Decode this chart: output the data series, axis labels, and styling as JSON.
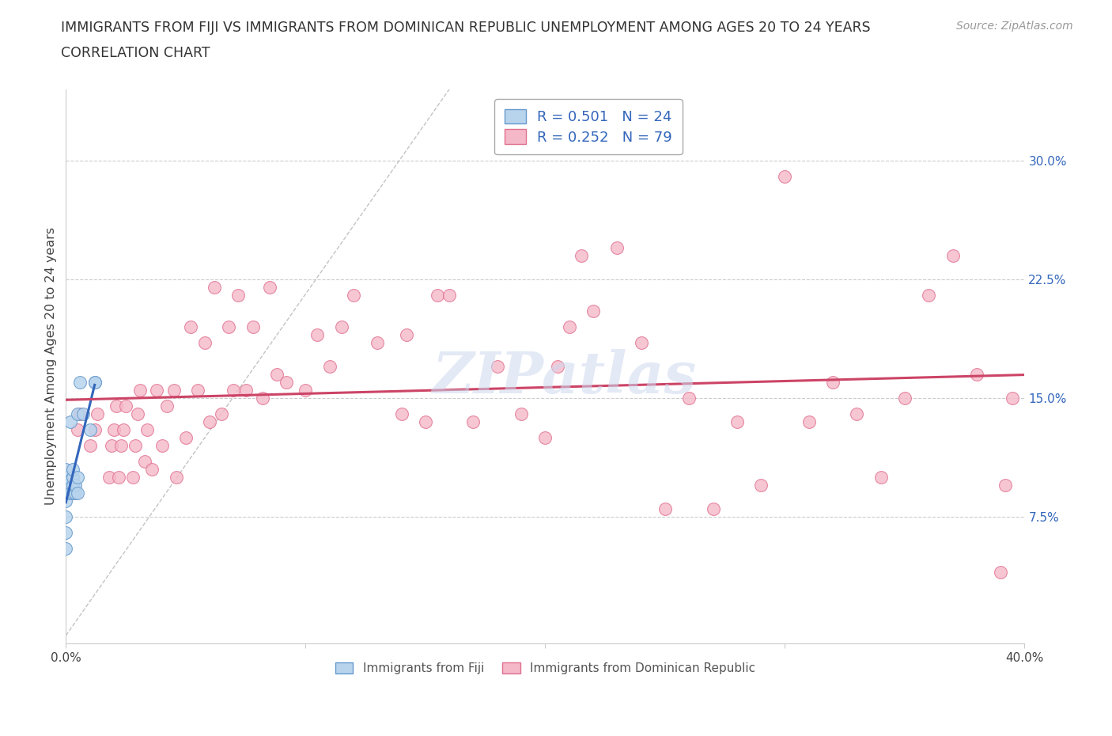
{
  "title_line1": "IMMIGRANTS FROM FIJI VS IMMIGRANTS FROM DOMINICAN REPUBLIC UNEMPLOYMENT AMONG AGES 20 TO 24 YEARS",
  "title_line2": "CORRELATION CHART",
  "source_text": "Source: ZipAtlas.com",
  "ylabel": "Unemployment Among Ages 20 to 24 years",
  "xlim": [
    0.0,
    0.4
  ],
  "ylim": [
    -0.005,
    0.345
  ],
  "right_yticks": [
    0.075,
    0.15,
    0.225,
    0.3
  ],
  "right_yticklabels": [
    "7.5%",
    "15.0%",
    "22.5%",
    "30.0%"
  ],
  "xticks": [
    0.0,
    0.1,
    0.2,
    0.3,
    0.4
  ],
  "xticklabels": [
    "0.0%",
    "",
    "",
    "",
    "40.0%"
  ],
  "fiji_color": "#b8d4ed",
  "fiji_edge_color": "#6699cc",
  "dr_color": "#f5b8c8",
  "dr_edge_color": "#e07090",
  "fiji_trend_color": "#3366bb",
  "dr_trend_color": "#cc4466",
  "legend_fiji_label": "R = 0.501   N = 24",
  "legend_dr_label": "R = 0.252   N = 79",
  "legend_label_fiji": "Immigrants from Fiji",
  "legend_label_dr": "Immigrants from Dominican Republic",
  "watermark": "ZIPatlas",
  "fiji_x": [
    0.0,
    0.0,
    0.0,
    0.0,
    0.0,
    0.0,
    0.0,
    0.0,
    0.002,
    0.002,
    0.003,
    0.003,
    0.003,
    0.003,
    0.004,
    0.004,
    0.005,
    0.005,
    0.005,
    0.006,
    0.007,
    0.01,
    0.012,
    0.012
  ],
  "fiji_y": [
    0.055,
    0.065,
    0.075,
    0.085,
    0.09,
    0.095,
    0.1,
    0.105,
    0.09,
    0.135,
    0.09,
    0.095,
    0.1,
    0.105,
    0.09,
    0.095,
    0.09,
    0.1,
    0.14,
    0.16,
    0.14,
    0.13,
    0.16,
    0.16
  ],
  "dr_x": [
    0.005,
    0.006,
    0.01,
    0.012,
    0.013,
    0.018,
    0.019,
    0.02,
    0.021,
    0.022,
    0.023,
    0.024,
    0.025,
    0.028,
    0.029,
    0.03,
    0.031,
    0.033,
    0.034,
    0.036,
    0.038,
    0.04,
    0.042,
    0.045,
    0.046,
    0.05,
    0.052,
    0.055,
    0.058,
    0.06,
    0.062,
    0.065,
    0.068,
    0.07,
    0.072,
    0.075,
    0.078,
    0.082,
    0.085,
    0.088,
    0.092,
    0.1,
    0.105,
    0.11,
    0.115,
    0.12,
    0.13,
    0.14,
    0.142,
    0.15,
    0.155,
    0.16,
    0.17,
    0.18,
    0.19,
    0.2,
    0.205,
    0.21,
    0.215,
    0.22,
    0.23,
    0.24,
    0.25,
    0.26,
    0.27,
    0.28,
    0.29,
    0.3,
    0.31,
    0.32,
    0.33,
    0.34,
    0.35,
    0.36,
    0.37,
    0.38,
    0.39,
    0.392,
    0.395
  ],
  "dr_y": [
    0.13,
    0.14,
    0.12,
    0.13,
    0.14,
    0.1,
    0.12,
    0.13,
    0.145,
    0.1,
    0.12,
    0.13,
    0.145,
    0.1,
    0.12,
    0.14,
    0.155,
    0.11,
    0.13,
    0.105,
    0.155,
    0.12,
    0.145,
    0.155,
    0.1,
    0.125,
    0.195,
    0.155,
    0.185,
    0.135,
    0.22,
    0.14,
    0.195,
    0.155,
    0.215,
    0.155,
    0.195,
    0.15,
    0.22,
    0.165,
    0.16,
    0.155,
    0.19,
    0.17,
    0.195,
    0.215,
    0.185,
    0.14,
    0.19,
    0.135,
    0.215,
    0.215,
    0.135,
    0.17,
    0.14,
    0.125,
    0.17,
    0.195,
    0.24,
    0.205,
    0.245,
    0.185,
    0.08,
    0.15,
    0.08,
    0.135,
    0.095,
    0.29,
    0.135,
    0.16,
    0.14,
    0.1,
    0.15,
    0.215,
    0.24,
    0.165,
    0.04,
    0.095,
    0.15
  ]
}
